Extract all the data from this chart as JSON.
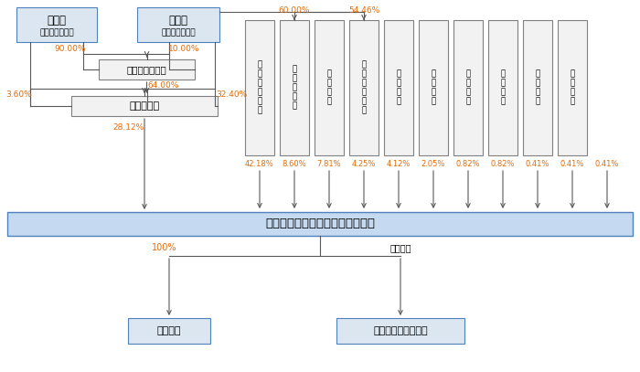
{
  "background_color": "#ffffff",
  "box_fill_top": "#dce6f1",
  "box_fill_auto": "#f2f2f2",
  "box_fill_new": "#f2f2f2",
  "box_fill_vert": "#f2f2f2",
  "box_fill_main": "#c5d9f1",
  "box_fill_bottom": "#dce6f1",
  "box_border_top": "#4f81bd",
  "box_border_mid": "#808080",
  "box_border_main": "#4f81bd",
  "line_color": "#595959",
  "pct_color": "#e36c09",
  "black_text": "#000000",
  "yang_label": "杨艳红",
  "yang_sub": "（实际控制人）",
  "zhang_label": "张嗣军",
  "zhang_sub": "（实际控制人）",
  "auto_label": "苏州佳合自动化",
  "new_label": "苏州新佳合",
  "main_label": "江苏聚成金刚石科技股份有限公司",
  "sub1_label": "立迅全民",
  "sub2_label": "聚成科技常熟分公司",
  "branch_label": "分支机构",
  "vert_labels": [
    "聚\n成\n氩\n茑\n咨\n询",
    "苏\n州\n正\n氩\n缘",
    "厦\n门\n觉\n翔",
    "聚\n成\n氩\n园\n咨\n询",
    "广\n东\n飞\n舟",
    "无\n锡\n春\n鑫",
    "沈\n阳\n宇\n骏",
    "浙\n创\n好\n雨",
    "宁\n波\n骧\n致",
    "海\n南\n华\n昆"
  ],
  "vert_pcts": [
    "42.18%",
    "8.60%",
    "7.81%",
    "4.25%",
    "4.12%",
    "2.05%",
    "0.82%",
    "0.82%",
    "0.41%",
    "0.41%",
    "0.41%"
  ],
  "pct_90": "90.00%",
  "pct_10": "10.00%",
  "pct_360": "3.60%",
  "pct_64": "64.00%",
  "pct_324": "32.40%",
  "pct_2812": "28.12%",
  "pct_60": "60.00%",
  "pct_5446": "54.46%",
  "pct_100": "100%"
}
